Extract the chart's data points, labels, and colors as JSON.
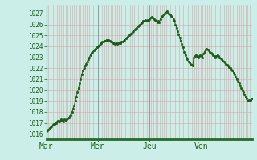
{
  "background_color": "#cceee8",
  "plot_bg_color": "#cceee8",
  "line_color": "#1a5c1a",
  "marker_color": "#1a5c1a",
  "grid_color_v": "#d4a8a8",
  "grid_color_h": "#d4a8a8",
  "sep_color": "#888888",
  "ylim_min": 1015.5,
  "ylim_max": 1027.8,
  "yticks": [
    1016,
    1017,
    1018,
    1019,
    1020,
    1021,
    1022,
    1023,
    1024,
    1025,
    1026,
    1027
  ],
  "xtick_labels": [
    "Mar",
    "Mer",
    "Jeu",
    "Ven"
  ],
  "xtick_positions": [
    0,
    48,
    96,
    144
  ],
  "vline_positions": [
    0,
    48,
    96,
    144
  ],
  "data_points": [
    1016.2,
    1016.3,
    1016.4,
    1016.5,
    1016.6,
    1016.7,
    1016.8,
    1016.9,
    1016.9,
    1017.0,
    1017.1,
    1017.2,
    1017.1,
    1017.2,
    1017.3,
    1017.2,
    1017.1,
    1017.3,
    1017.2,
    1017.3,
    1017.4,
    1017.5,
    1017.6,
    1017.7,
    1018.0,
    1018.3,
    1018.6,
    1019.0,
    1019.4,
    1019.8,
    1020.2,
    1020.6,
    1021.0,
    1021.4,
    1021.8,
    1022.0,
    1022.2,
    1022.4,
    1022.6,
    1022.8,
    1023.0,
    1023.2,
    1023.4,
    1023.5,
    1023.6,
    1023.7,
    1023.8,
    1023.9,
    1024.0,
    1024.1,
    1024.2,
    1024.3,
    1024.4,
    1024.4,
    1024.5,
    1024.5,
    1024.6,
    1024.5,
    1024.6,
    1024.5,
    1024.4,
    1024.4,
    1024.3,
    1024.3,
    1024.2,
    1024.3,
    1024.2,
    1024.3,
    1024.3,
    1024.3,
    1024.4,
    1024.4,
    1024.5,
    1024.6,
    1024.7,
    1024.8,
    1024.9,
    1025.0,
    1025.1,
    1025.2,
    1025.3,
    1025.4,
    1025.5,
    1025.6,
    1025.7,
    1025.8,
    1025.9,
    1026.0,
    1026.1,
    1026.2,
    1026.3,
    1026.3,
    1026.4,
    1026.3,
    1026.4,
    1026.3,
    1026.5,
    1026.6,
    1026.7,
    1026.6,
    1026.5,
    1026.4,
    1026.3,
    1026.2,
    1026.3,
    1026.2,
    1026.5,
    1026.7,
    1026.8,
    1026.9,
    1027.0,
    1027.1,
    1027.2,
    1027.1,
    1027.0,
    1026.9,
    1026.8,
    1026.7,
    1026.5,
    1026.3,
    1026.0,
    1025.7,
    1025.4,
    1025.1,
    1024.8,
    1024.5,
    1024.2,
    1023.9,
    1023.5,
    1023.2,
    1023.0,
    1022.8,
    1022.6,
    1022.5,
    1022.4,
    1022.3,
    1022.2,
    1023.0,
    1023.1,
    1023.2,
    1023.1,
    1023.0,
    1023.1,
    1023.2,
    1023.1,
    1023.0,
    1023.3,
    1023.5,
    1023.7,
    1023.8,
    1023.7,
    1023.6,
    1023.5,
    1023.4,
    1023.3,
    1023.2,
    1023.1,
    1023.0,
    1023.1,
    1023.2,
    1023.1,
    1023.0,
    1022.9,
    1022.8,
    1022.7,
    1022.6,
    1022.5,
    1022.4,
    1022.3,
    1022.2,
    1022.1,
    1022.0,
    1021.9,
    1021.8,
    1021.6,
    1021.4,
    1021.2,
    1021.0,
    1020.8,
    1020.6,
    1020.4,
    1020.2,
    1020.0,
    1019.8,
    1019.6,
    1019.4,
    1019.2,
    1019.0,
    1019.1,
    1019.0,
    1019.1,
    1019.2
  ]
}
